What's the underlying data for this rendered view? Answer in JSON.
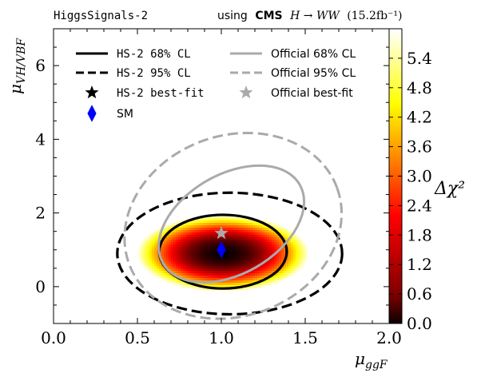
{
  "chart_data": {
    "type": "heatmap",
    "title_left": "HiggsSignals-2",
    "title_right": {
      "prefix": "using",
      "experiment": "CMS",
      "channel": "H → WW",
      "lumi": "(15.2fb⁻¹)"
    },
    "xlabel": "μ",
    "xlabel_sub": "ggF",
    "ylabel": "μ",
    "ylabel_sub": "VH/VBF",
    "xlim": [
      0.0,
      2.0
    ],
    "ylim": [
      -1.0,
      7.0
    ],
    "xticks": [
      "0.0",
      "0.5",
      "1.0",
      "1.5",
      "2.0"
    ],
    "yticks": [
      "0",
      "2",
      "4",
      "6"
    ],
    "colorbar": {
      "label": "Δχ²",
      "min": 0.0,
      "max": 6.0,
      "ticks": [
        "0.0",
        "0.6",
        "1.2",
        "1.8",
        "2.4",
        "3.0",
        "3.6",
        "4.2",
        "4.8",
        "5.4"
      ],
      "colormap": "hot"
    },
    "heatmap": {
      "best_fit": [
        1.01,
        0.9
      ],
      "scale_x": 0.209,
      "scale_y": 0.423,
      "rho": 0.0
    },
    "legend": {
      "placement": "upper-left",
      "entries": [
        {
          "label": "HS-2 68% CL",
          "style": "solid",
          "color": "#000000"
        },
        {
          "label": "HS-2 95% CL",
          "style": "dashed",
          "color": "#000000"
        },
        {
          "label": "HS-2 best-fit",
          "style": "star",
          "color": "#000000"
        },
        {
          "label": "SM",
          "style": "diamond",
          "color": "#0000ff"
        },
        {
          "label": "Official 68% CL",
          "style": "solid",
          "color": "#aaaaaa"
        },
        {
          "label": "Official 95% CL",
          "style": "dashed",
          "color": "#aaaaaa"
        },
        {
          "label": "Official best-fit",
          "style": "star",
          "color": "#aaaaaa"
        }
      ]
    },
    "series": [
      {
        "name": "HS-2 68% CL",
        "type": "contour",
        "center": [
          1.01,
          0.95
        ],
        "semi_axes": [
          0.38,
          1.0
        ],
        "rotation": 0
      },
      {
        "name": "HS-2 95% CL",
        "type": "contour",
        "center": [
          1.05,
          0.9
        ],
        "semi_axes": [
          0.67,
          1.65
        ],
        "rotation": 0
      },
      {
        "name": "Official 68% CL",
        "type": "contour",
        "center": [
          1.06,
          1.7
        ],
        "semi_axes": [
          0.47,
          1.35
        ],
        "rotation": -30
      },
      {
        "name": "Official 95% CL",
        "type": "contour",
        "center": [
          1.07,
          1.65
        ],
        "semi_axes": [
          0.66,
          2.45
        ],
        "rotation": -20
      }
    ],
    "points": [
      {
        "name": "HS-2 best-fit",
        "x": 1.01,
        "y": 0.9,
        "marker": "star",
        "color": "#000000"
      },
      {
        "name": "SM",
        "x": 1.0,
        "y": 1.0,
        "marker": "diamond",
        "color": "#0000ff"
      },
      {
        "name": "Official best-fit",
        "x": 1.0,
        "y": 1.45,
        "marker": "star",
        "color": "#aaaaaa"
      }
    ]
  }
}
